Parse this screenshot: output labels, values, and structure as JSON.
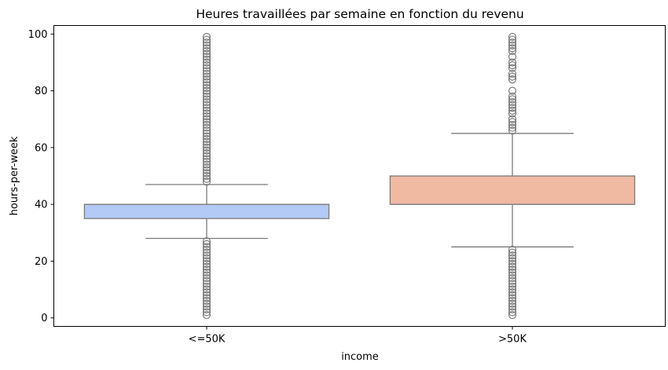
{
  "chart_data": {
    "type": "box",
    "title": "Heures travaillées par semaine en fonction du revenu",
    "xlabel": "income",
    "ylabel": "hours-per-week",
    "ylim": [
      -3,
      103
    ],
    "yticks": [
      0,
      20,
      40,
      60,
      80,
      100
    ],
    "grid": false,
    "categories": [
      "<=50K",
      ">50K"
    ],
    "boxes": [
      {
        "category": "<=50K",
        "color": "#b3c9f6",
        "whisker_low": 28,
        "q1": 35,
        "median": 40,
        "q3": 40,
        "whisker_high": 47,
        "outliers_high": [
          48,
          49,
          50,
          51,
          52,
          53,
          54,
          55,
          56,
          57,
          58,
          59,
          60,
          61,
          62,
          63,
          64,
          65,
          66,
          67,
          68,
          69,
          70,
          71,
          72,
          73,
          74,
          75,
          76,
          77,
          78,
          79,
          80,
          81,
          82,
          83,
          84,
          85,
          86,
          87,
          88,
          89,
          90,
          91,
          92,
          93,
          94,
          95,
          96,
          97,
          98,
          99
        ],
        "outliers_low": [
          1,
          2,
          3,
          4,
          5,
          6,
          7,
          8,
          9,
          10,
          11,
          12,
          13,
          14,
          15,
          16,
          17,
          18,
          19,
          20,
          21,
          22,
          23,
          24,
          25,
          26,
          27
        ]
      },
      {
        "category": ">50K",
        "color": "#f0b9a2",
        "whisker_low": 25,
        "q1": 40,
        "median": 40,
        "q3": 50,
        "whisker_high": 65,
        "outliers_high": [
          66,
          67,
          68,
          69,
          70,
          72,
          73,
          74,
          75,
          76,
          77,
          78,
          80,
          84,
          85,
          86,
          88,
          89,
          90,
          92,
          94,
          95,
          96,
          97,
          98,
          99
        ],
        "outliers_low": [
          1,
          2,
          3,
          4,
          5,
          6,
          7,
          8,
          9,
          10,
          11,
          12,
          13,
          14,
          15,
          16,
          17,
          18,
          19,
          20,
          21,
          22,
          23,
          24
        ]
      }
    ]
  }
}
